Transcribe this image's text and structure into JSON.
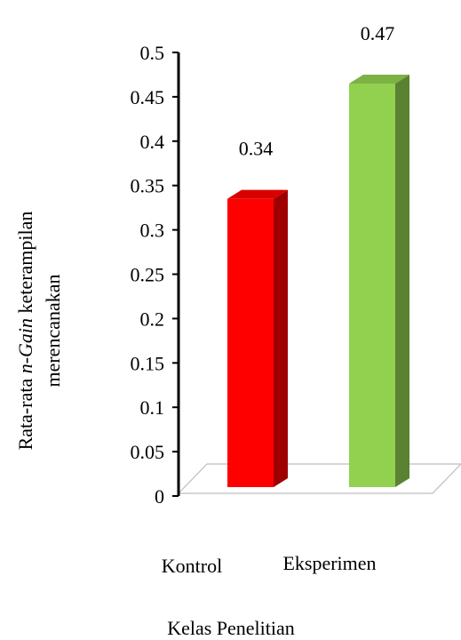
{
  "chart_data": {
    "type": "bar",
    "style": "3d-column",
    "categories": [
      "Kontrol",
      "Eksperimen"
    ],
    "values": [
      0.34,
      0.47
    ],
    "data_labels": [
      "0.34",
      "0.47"
    ],
    "colors": [
      "#ff0000",
      "#92d050"
    ],
    "xlabel": "Kelas Penelitian",
    "ylabel_line1_prefix": "Rata-rata ",
    "ylabel_line1_italic": "n-Gain",
    "ylabel_line1_suffix": " keterampilan",
    "ylabel_line2": "merencanakan",
    "ylim": [
      0,
      0.5
    ],
    "yticks": [
      "0",
      "0.05",
      "0.1",
      "0.15",
      "0.2",
      "0.25",
      "0.3",
      "0.35",
      "0.4",
      "0.45",
      "0.5"
    ],
    "grid": false,
    "legend": "none"
  }
}
